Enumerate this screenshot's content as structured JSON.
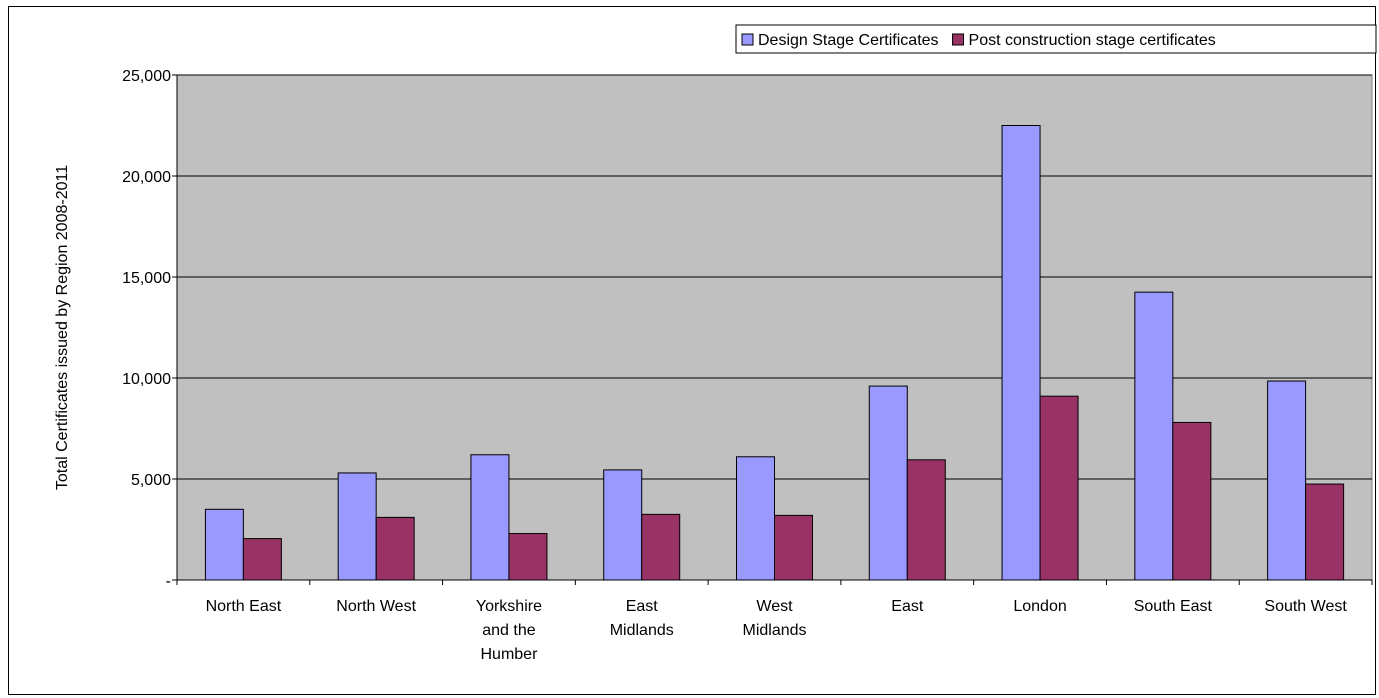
{
  "chart_data": {
    "type": "bar",
    "title": "",
    "xlabel": "",
    "ylabel": "Total Certificates issued by Region 2008-2011",
    "ylim": [
      0,
      25000
    ],
    "yticks": [
      {
        "value": 0,
        "label": "-"
      },
      {
        "value": 5000,
        "label": "5,000"
      },
      {
        "value": 10000,
        "label": "10,000"
      },
      {
        "value": 15000,
        "label": "15,000"
      },
      {
        "value": 20000,
        "label": "20,000"
      },
      {
        "value": 25000,
        "label": "25,000"
      }
    ],
    "categories": [
      [
        "North East"
      ],
      [
        "North West"
      ],
      [
        "Yorkshire",
        "and the",
        "Humber"
      ],
      [
        "East",
        "Midlands"
      ],
      [
        "West",
        "Midlands"
      ],
      [
        "East"
      ],
      [
        "London"
      ],
      [
        "South East"
      ],
      [
        "South West"
      ]
    ],
    "series": [
      {
        "name": "Design Stage Certificates",
        "color": "#9999FF",
        "values": [
          3500,
          5300,
          6200,
          5450,
          6100,
          9600,
          22500,
          14250,
          9850
        ]
      },
      {
        "name": "Post construction stage certificates",
        "color": "#993366",
        "values": [
          2050,
          3100,
          2300,
          3250,
          3200,
          5950,
          9100,
          7800,
          4750
        ]
      }
    ],
    "grid": true,
    "legend_position": "top-right",
    "plot_background": "#C0C0C0"
  }
}
